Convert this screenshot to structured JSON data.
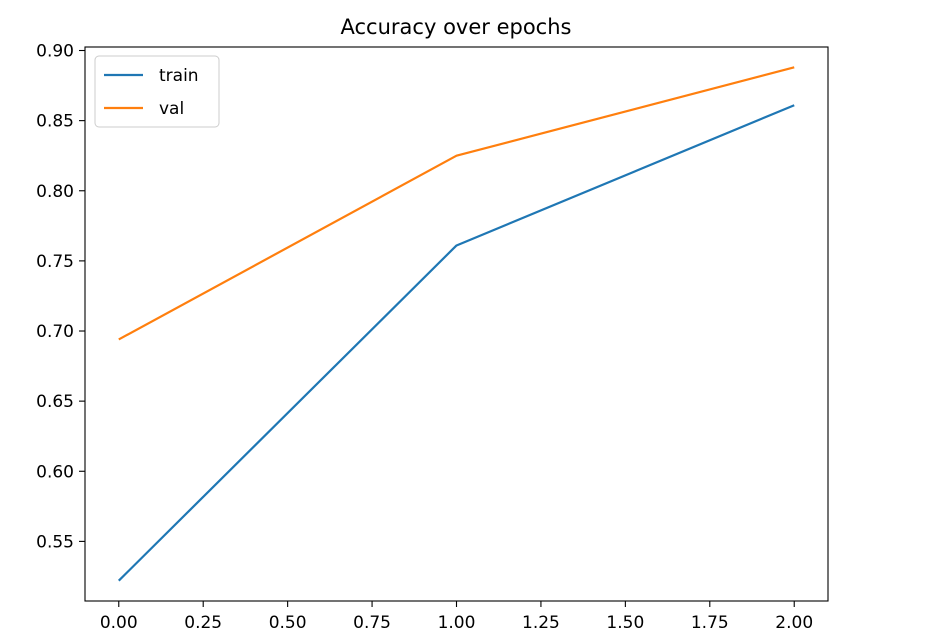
{
  "chart_data": {
    "type": "line",
    "title": "Accuracy over epochs",
    "xlabel": "",
    "ylabel": "",
    "x": [
      0,
      1,
      2
    ],
    "series": [
      {
        "name": "train",
        "values": [
          0.522,
          0.761,
          0.861
        ],
        "color": "#1f77b4"
      },
      {
        "name": "val",
        "values": [
          0.694,
          0.825,
          0.888
        ],
        "color": "#ff7f0e"
      }
    ],
    "xlim": [
      -0.1,
      2.1
    ],
    "ylim": [
      0.5075,
      0.9025
    ],
    "xticks": [
      0.0,
      0.25,
      0.5,
      0.75,
      1.0,
      1.25,
      1.5,
      1.75,
      2.0
    ],
    "xtick_labels": [
      "0.00",
      "0.25",
      "0.50",
      "0.75",
      "1.00",
      "1.25",
      "1.50",
      "1.75",
      "2.00"
    ],
    "yticks": [
      0.55,
      0.6,
      0.65,
      0.7,
      0.75,
      0.8,
      0.85,
      0.9
    ],
    "ytick_labels": [
      "0.55",
      "0.60",
      "0.65",
      "0.70",
      "0.75",
      "0.80",
      "0.85",
      "0.90"
    ],
    "grid": false,
    "legend_position": "top-left"
  }
}
